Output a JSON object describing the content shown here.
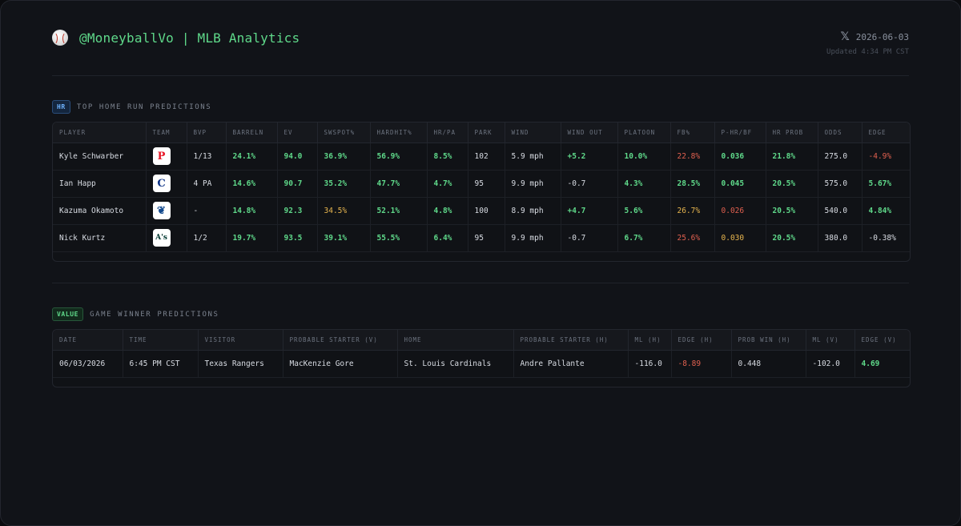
{
  "header": {
    "title": "@MoneyballVo | MLB Analytics",
    "date": "2026-06-03",
    "updated": "Updated 4:34 PM CST",
    "ball_icon": "baseball-icon",
    "x_icon": "x-logo-icon"
  },
  "hr_section": {
    "badge": "HR",
    "title": "TOP HOME RUN PREDICTIONS",
    "columns": [
      "PLAYER",
      "TEAM",
      "BVP",
      "BARRELN",
      "EV",
      "SWSPOT%",
      "HARDHIT%",
      "HR/PA",
      "PARK",
      "WIND",
      "WIND OUT",
      "PLATOON",
      "FB%",
      "P-HR/BF",
      "HR PROB",
      "ODDS",
      "EDGE"
    ],
    "rows": [
      {
        "player": "Kyle Schwarber",
        "team_logo": {
          "glyph": "P",
          "color": "#E81828"
        },
        "bvp": "1/13",
        "barreln": "24.1%",
        "ev": "94.0",
        "swspot": "36.9%",
        "hardhit": "56.9%",
        "hrpa": "8.5%",
        "park": "102",
        "wind": "5.9 mph",
        "wind_out": "+5.2",
        "platoon": "10.0%",
        "fb": "22.8%",
        "phrbf": "0.036",
        "hrprob": "21.8%",
        "odds": "275.0",
        "edge": "-4.9%"
      },
      {
        "player": "Ian Happ",
        "team_logo": {
          "glyph": "C",
          "color": "#0E3386"
        },
        "bvp": "4 PA",
        "barreln": "14.6%",
        "ev": "90.7",
        "swspot": "35.2%",
        "hardhit": "47.7%",
        "hrpa": "4.7%",
        "park": "95",
        "wind": "9.9 mph",
        "wind_out": "-0.7",
        "platoon": "4.3%",
        "fb": "28.5%",
        "phrbf": "0.045",
        "hrprob": "20.5%",
        "odds": "575.0",
        "edge": "5.67%"
      },
      {
        "player": "Kazuma Okamoto",
        "team_logo": {
          "glyph": "❦",
          "color": "#134A8E"
        },
        "bvp": "-",
        "barreln": "14.8%",
        "ev": "92.3",
        "swspot": "34.5%",
        "hardhit": "52.1%",
        "hrpa": "4.8%",
        "park": "100",
        "wind": "8.9 mph",
        "wind_out": "+4.7",
        "platoon": "5.6%",
        "fb": "26.7%",
        "phrbf": "0.026",
        "hrprob": "20.5%",
        "odds": "540.0",
        "edge": "4.84%"
      },
      {
        "player": "Nick Kurtz",
        "team_logo": {
          "glyph": "A's",
          "color": "#003831"
        },
        "bvp": "1/2",
        "barreln": "19.7%",
        "ev": "93.5",
        "swspot": "39.1%",
        "hardhit": "55.5%",
        "hrpa": "6.4%",
        "park": "95",
        "wind": "9.9 mph",
        "wind_out": "-0.7",
        "platoon": "6.7%",
        "fb": "25.6%",
        "phrbf": "0.030",
        "hrprob": "20.5%",
        "odds": "380.0",
        "edge": "-0.38%"
      }
    ]
  },
  "value_section": {
    "badge": "VALUE",
    "title": "GAME WINNER PREDICTIONS",
    "columns": [
      "DATE",
      "TIME",
      "VISITOR",
      "PROBABLE STARTER (V)",
      "HOME",
      "PROBABLE STARTER (H)",
      "ML (H)",
      "EDGE (H)",
      "PROB WIN (H)",
      "ML (V)",
      "EDGE (V)"
    ],
    "rows": [
      {
        "date": "06/03/2026",
        "time": "6:45 PM CST",
        "visitor": "Texas Rangers",
        "starter_v": "MacKenzie Gore",
        "home": "St. Louis Cardinals",
        "starter_h": "Andre Pallante",
        "ml_h": "-116.0",
        "edge_h": "-8.89",
        "probwin_h": "0.448",
        "ml_v": "-102.0",
        "edge_v": "4.69"
      }
    ]
  },
  "colors": {
    "positive": "#5fd98a",
    "negative": "#e0604f",
    "caution": "#e8b64f",
    "background": "#111318"
  }
}
